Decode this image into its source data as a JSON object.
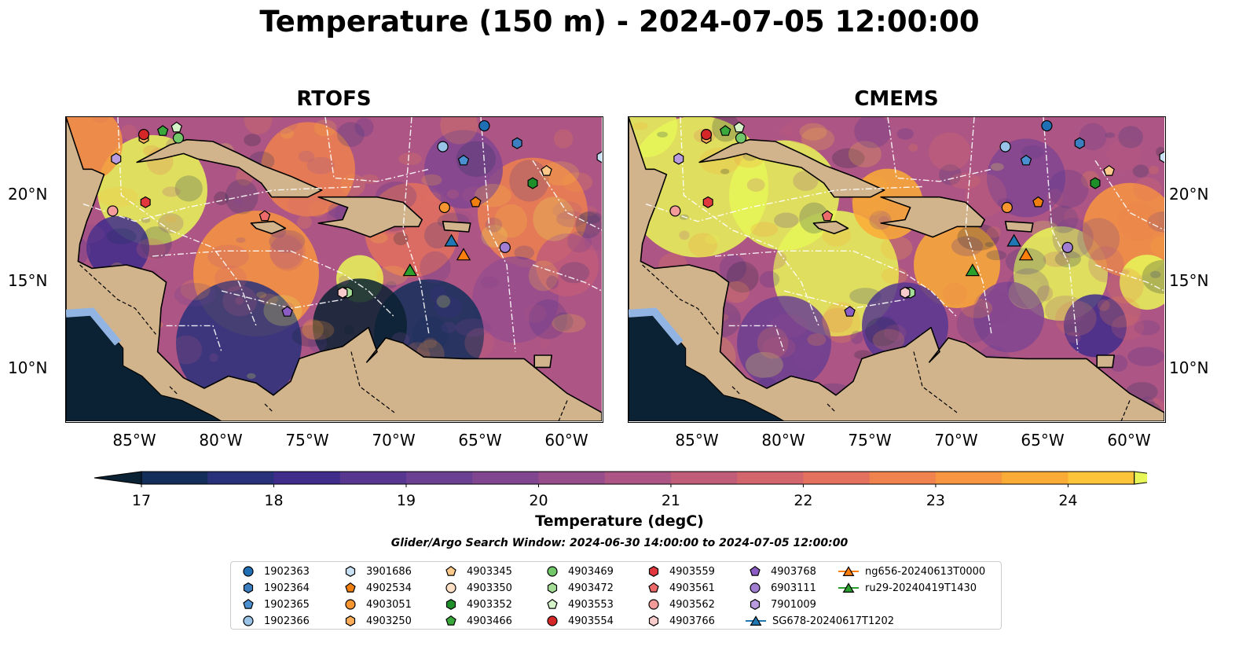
{
  "title": "Temperature (150 m) - 2024-07-05 12:00:00",
  "panels": [
    {
      "title": "RTOFS",
      "field": "rtofs"
    },
    {
      "title": "CMEMS",
      "field": "cmems"
    }
  ],
  "map": {
    "lon_range": [
      -89,
      -58
    ],
    "lat_range": [
      7,
      24.5
    ],
    "lon_ticks": [
      "85°W",
      "80°W",
      "75°W",
      "70°W",
      "65°W",
      "60°W"
    ],
    "lat_ticks": [
      "20°N",
      "15°N",
      "10°N"
    ],
    "colors": {
      "ocean": "#92b4e2",
      "land": "#d2b48c",
      "eez_line": "#ffffff",
      "border_line": "#000000"
    }
  },
  "colorbar": {
    "label": "Temperature (degC)",
    "ticks": [
      "17",
      "18",
      "19",
      "20",
      "21",
      "22",
      "23",
      "24"
    ],
    "min": 17,
    "max": 24.5,
    "colors": [
      "#0a2233",
      "#132f59",
      "#29317a",
      "#402d8b",
      "#57378f",
      "#6b3f91",
      "#814690",
      "#974d8c",
      "#ad5584",
      "#c15c79",
      "#d3656c",
      "#e3715e",
      "#ef824d",
      "#f79540",
      "#fbac36",
      "#fcc43a",
      "#e8f757"
    ]
  },
  "search_window": "Glider/Argo Search Window: 2024-06-30 14:00:00 to 2024-07-05 12:00:00",
  "legend": [
    {
      "label": "1902363",
      "marker": "circle",
      "color": "#1f6fb5"
    },
    {
      "label": "1902364",
      "marker": "hexagon",
      "color": "#3b7fc0"
    },
    {
      "label": "1902365",
      "marker": "pentagon",
      "color": "#4a8fd0"
    },
    {
      "label": "1902366",
      "marker": "circle",
      "color": "#9ac3e8"
    },
    {
      "label": "3901686",
      "marker": "hexagon",
      "color": "#c9e1f5"
    },
    {
      "label": "4902534",
      "marker": "pentagon",
      "color": "#f07f10"
    },
    {
      "label": "4903051",
      "marker": "circle",
      "color": "#f79530"
    },
    {
      "label": "4903250",
      "marker": "hexagon",
      "color": "#fbad5a"
    },
    {
      "label": "4903345",
      "marker": "pentagon",
      "color": "#fcc98a"
    },
    {
      "label": "4903350",
      "marker": "circle",
      "color": "#fde0c5"
    },
    {
      "label": "4903352",
      "marker": "hexagon",
      "color": "#1f8f2a"
    },
    {
      "label": "4903466",
      "marker": "pentagon",
      "color": "#3aa83a"
    },
    {
      "label": "4903469",
      "marker": "circle",
      "color": "#72c76a"
    },
    {
      "label": "4903472",
      "marker": "hexagon",
      "color": "#a4dd95"
    },
    {
      "label": "4903553",
      "marker": "pentagon",
      "color": "#d6f2c9"
    },
    {
      "label": "4903554",
      "marker": "circle",
      "color": "#d62728"
    },
    {
      "label": "4903559",
      "marker": "hexagon",
      "color": "#e0383c"
    },
    {
      "label": "4903561",
      "marker": "pentagon",
      "color": "#ec6a6a"
    },
    {
      "label": "4903562",
      "marker": "circle",
      "color": "#f39a9a"
    },
    {
      "label": "4903766",
      "marker": "hexagon",
      "color": "#f9cccc"
    },
    {
      "label": "4903768",
      "marker": "pentagon",
      "color": "#8b5cc4"
    },
    {
      "label": "6903111",
      "marker": "circle",
      "color": "#a27ed2"
    },
    {
      "label": "7901009",
      "marker": "hexagon",
      "color": "#b99be0"
    },
    {
      "label": "SG678-20240617T1202",
      "marker": "triangle",
      "color": "#1f77b4"
    },
    {
      "label": "ng656-20240613T0000",
      "marker": "triangle",
      "color": "#ff7f0e"
    },
    {
      "label": "ru29-20240419T1430",
      "marker": "triangle",
      "color": "#2ca02c"
    }
  ],
  "floats": [
    {
      "id": "1902363",
      "lon": -64.8,
      "lat": 24.0
    },
    {
      "id": "1902364",
      "lon": -62.9,
      "lat": 23.0
    },
    {
      "id": "1902365",
      "lon": -66.0,
      "lat": 22.0
    },
    {
      "id": "1902366",
      "lon": -67.2,
      "lat": 22.8
    },
    {
      "id": "3901686",
      "lon": -58.0,
      "lat": 22.2
    },
    {
      "id": "4902534",
      "lon": -65.3,
      "lat": 19.6
    },
    {
      "id": "4903051",
      "lon": -67.1,
      "lat": 19.3
    },
    {
      "id": "4903250",
      "lon": -84.5,
      "lat": 23.3
    },
    {
      "id": "4903345",
      "lon": -61.2,
      "lat": 21.4
    },
    {
      "id": "4903350",
      "lon": -72.9,
      "lat": 14.4
    },
    {
      "id": "4903352",
      "lon": -62.0,
      "lat": 20.7
    },
    {
      "id": "4903466",
      "lon": -83.4,
      "lat": 23.7
    },
    {
      "id": "4903469",
      "lon": -82.5,
      "lat": 23.3
    },
    {
      "id": "4903472",
      "lon": -72.7,
      "lat": 14.4
    },
    {
      "id": "4903553",
      "lon": -82.6,
      "lat": 23.9
    },
    {
      "id": "4903554",
      "lon": -84.5,
      "lat": 23.5
    },
    {
      "id": "4903559",
      "lon": -84.4,
      "lat": 19.6
    },
    {
      "id": "4903561",
      "lon": -77.5,
      "lat": 18.8
    },
    {
      "id": "4903562",
      "lon": -86.3,
      "lat": 19.1
    },
    {
      "id": "4903766",
      "lon": -73.0,
      "lat": 14.4
    },
    {
      "id": "4903768",
      "lon": -76.2,
      "lat": 13.3
    },
    {
      "id": "6903111",
      "lon": -63.6,
      "lat": 17.0
    },
    {
      "id": "7901009",
      "lon": -86.1,
      "lat": 22.1
    }
  ],
  "gliders": [
    {
      "id": "SG678-20240617T1202",
      "lon": -66.7,
      "lat": 17.4
    },
    {
      "id": "ng656-20240613T0000",
      "lon": -66.0,
      "lat": 16.6
    },
    {
      "id": "ru29-20240419T1430",
      "lon": -69.1,
      "lat": 15.7
    }
  ]
}
